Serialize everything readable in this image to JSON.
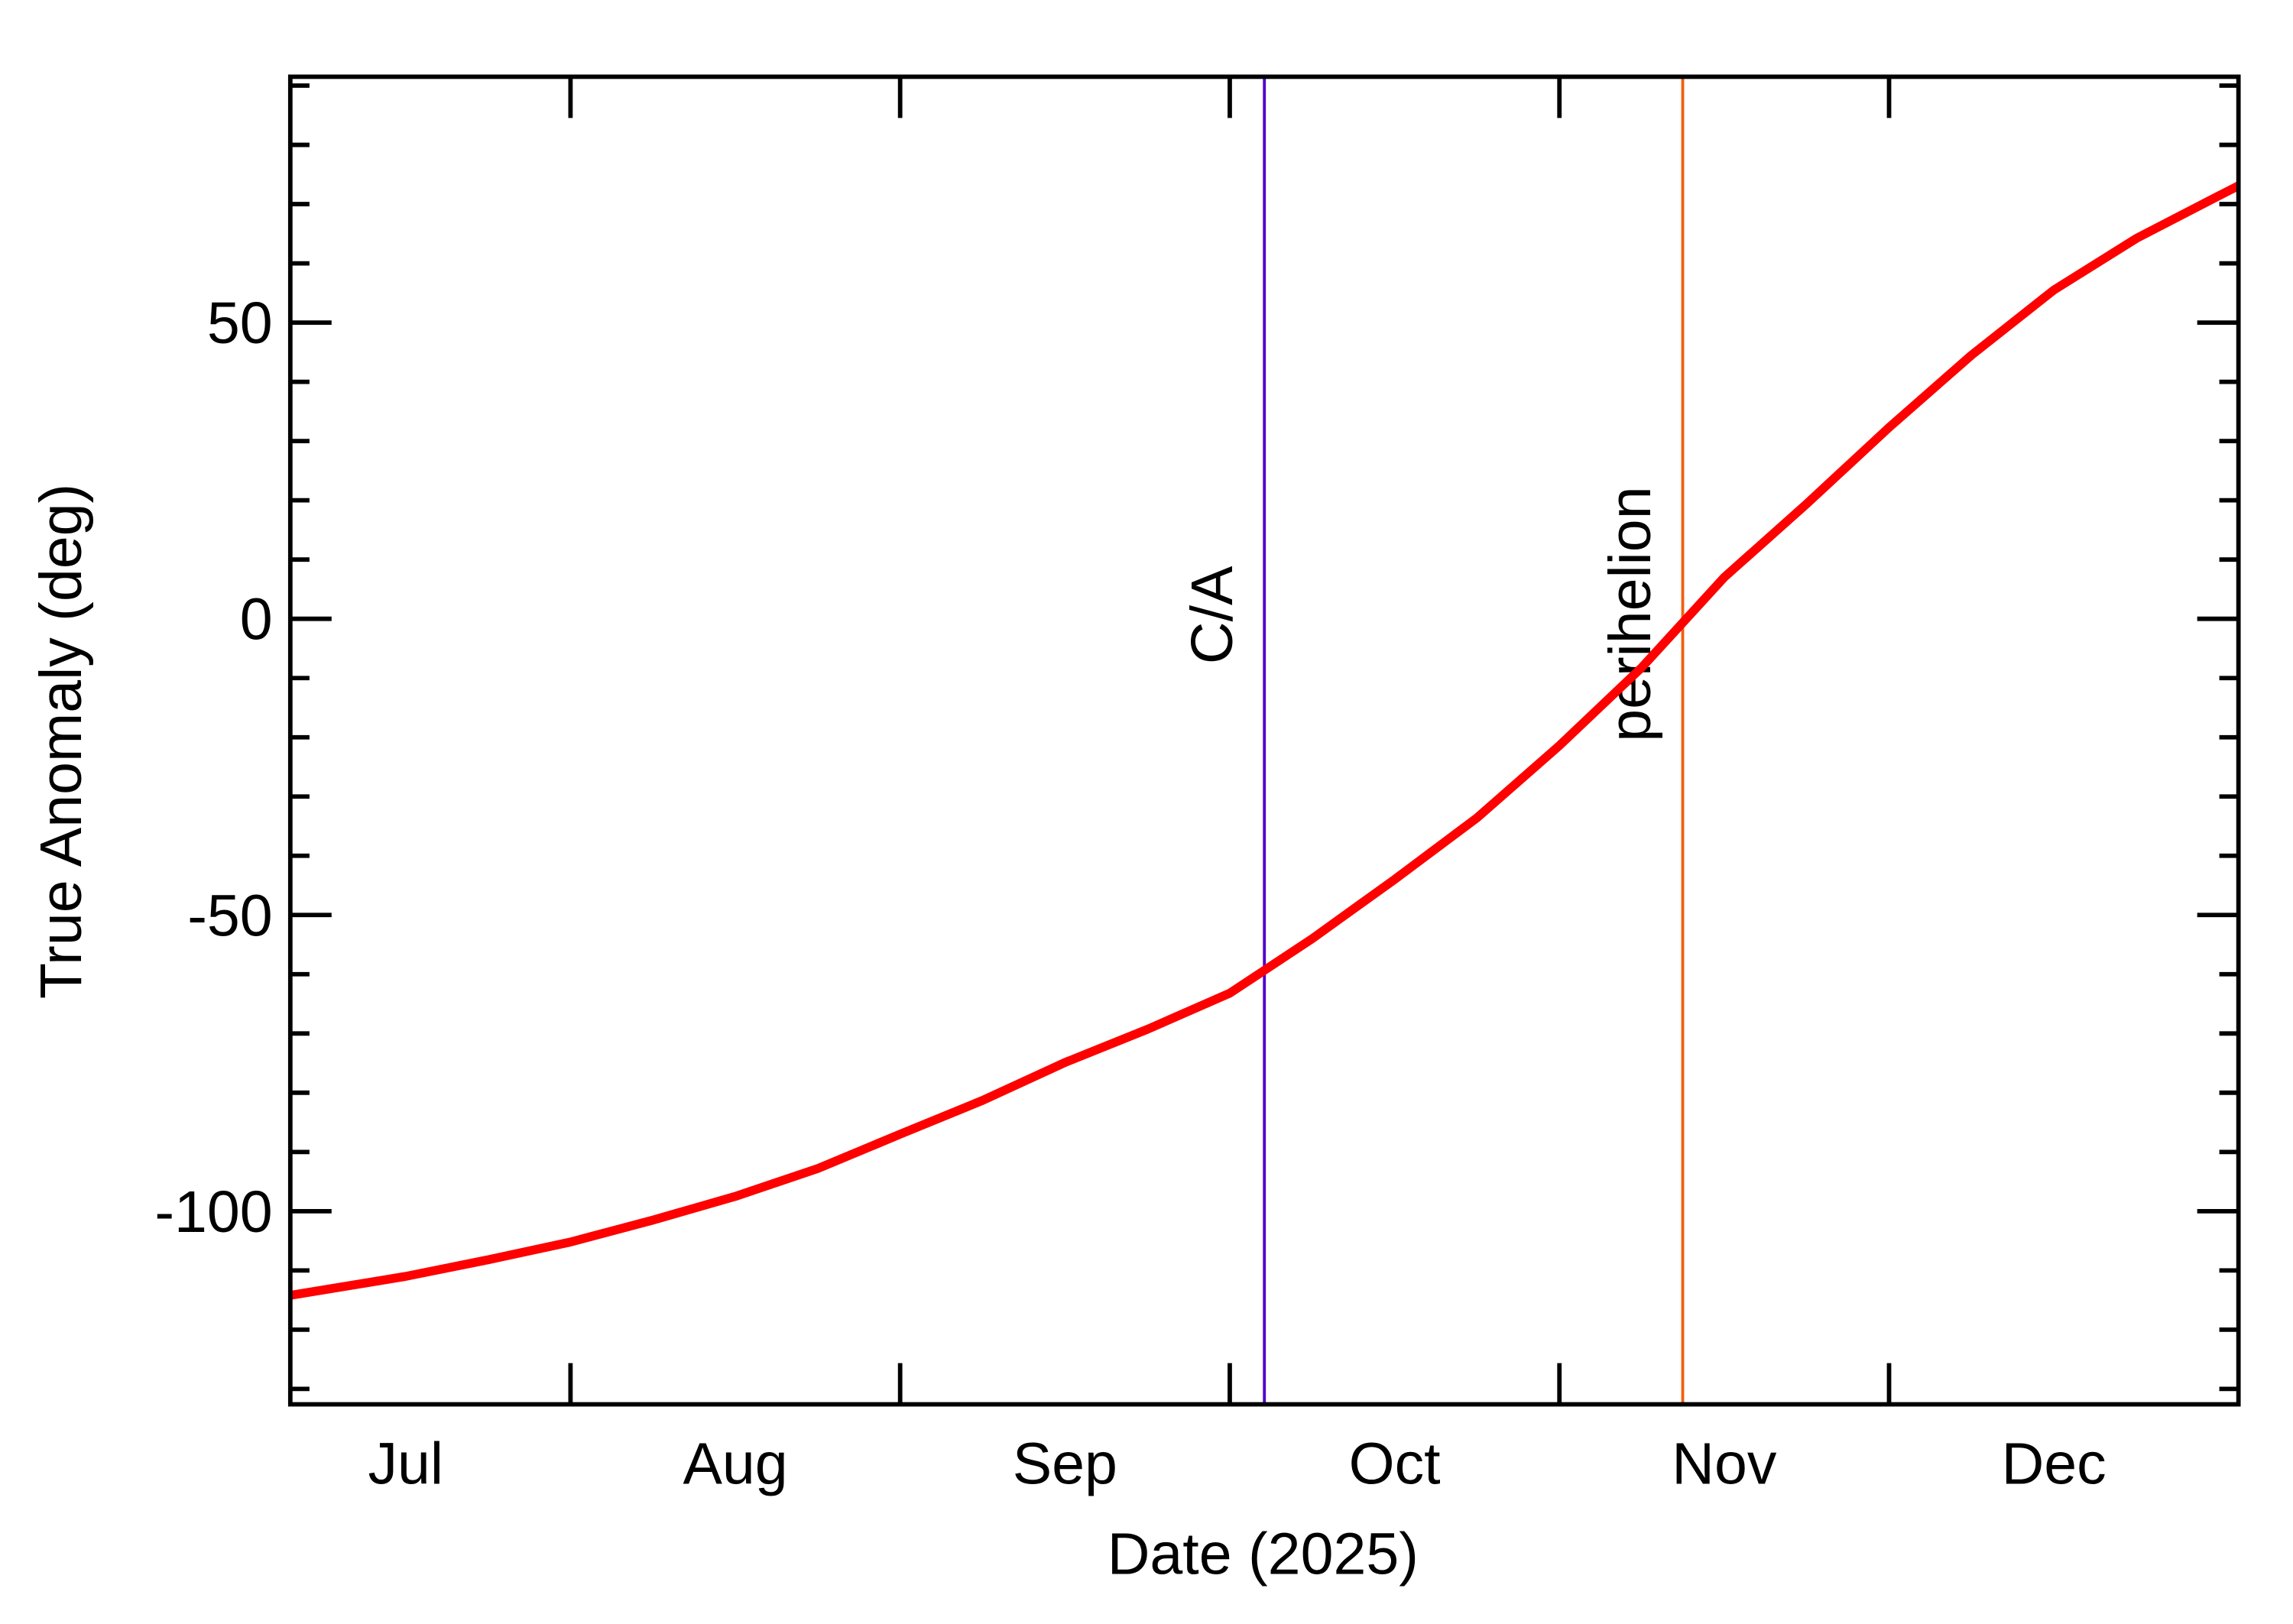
{
  "chart_data": {
    "type": "line",
    "x_label": "Date (2025)",
    "y_label": "True Anomaly (deg)",
    "x": [
      7.15,
      7.5,
      7.75,
      8,
      8.25,
      8.5,
      8.75,
      9,
      9.25,
      9.5,
      9.75,
      10,
      10.25,
      10.5,
      10.75,
      11,
      11.25,
      11.5,
      11.75,
      12,
      12.25,
      12.5,
      12.75,
      13,
      13.06
    ],
    "series": [
      {
        "color": "#ff0000",
        "values": [
          -114.2,
          -111,
          -108.2,
          -105.2,
          -101.5,
          -97.5,
          -92.8,
          -87,
          -81.3,
          -74.9,
          -69.3,
          -63.2,
          -54,
          -44,
          -33.6,
          -21.4,
          -8.2,
          7,
          19.4,
          32.3,
          44.5,
          55.5,
          64.2,
          71.4,
          73.1
        ]
      }
    ],
    "xlim": [
      7.15,
      13.06
    ],
    "xticks": [
      {
        "value": 7.5,
        "label": "Jul"
      },
      {
        "value": 8.5,
        "label": "Aug"
      },
      {
        "value": 9.5,
        "label": "Sep"
      },
      {
        "value": 10.5,
        "label": "Oct"
      },
      {
        "value": 11.5,
        "label": "Nov"
      },
      {
        "value": 12.5,
        "label": "Dec"
      }
    ],
    "xtick_marks": [
      8,
      9,
      10,
      11,
      12
    ],
    "ylim": [
      -132.6,
      91.5
    ],
    "yticks": [
      -100,
      -50,
      0,
      50
    ],
    "yminor_ticks": [
      -130,
      -120,
      -110,
      -90,
      -80,
      -70,
      -60,
      -40,
      -30,
      -20,
      -10,
      10,
      20,
      30,
      40,
      60,
      70,
      80,
      90
    ],
    "annotations": [
      {
        "label": "C/A",
        "x": 10.105,
        "color": "#5000c8"
      },
      {
        "label": "perihelion",
        "x": 11.374,
        "color": "#f06010"
      }
    ]
  }
}
